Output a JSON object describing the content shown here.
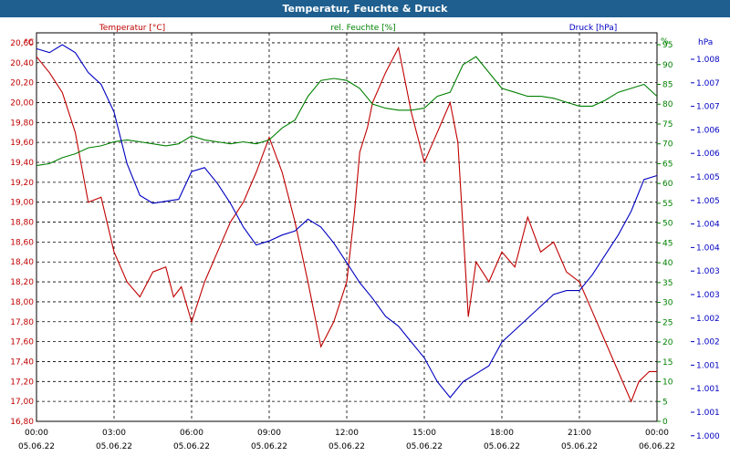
{
  "chart_data": {
    "type": "line",
    "title": "Temperatur, Feuchte & Druck",
    "x_tick_labels": [
      {
        "time": "00:00",
        "date": "05.06.22"
      },
      {
        "time": "03:00",
        "date": "05.06.22"
      },
      {
        "time": "06:00",
        "date": "05.06.22"
      },
      {
        "time": "09:00",
        "date": "05.06.22"
      },
      {
        "time": "12:00",
        "date": "05.06.22"
      },
      {
        "time": "15:00",
        "date": "05.06.22"
      },
      {
        "time": "18:00",
        "date": "05.06.22"
      },
      {
        "time": "21:00",
        "date": "05.06.22"
      },
      {
        "time": "00:00",
        "date": "06.06.22"
      }
    ],
    "x_range_hours": [
      0,
      24
    ],
    "axes": {
      "temperature": {
        "label": "Temperatur [°C]",
        "unit": "°C",
        "color": "#c00000",
        "range": [
          16.8,
          20.7
        ],
        "ticks": [
          "16,80",
          "17,00",
          "17,20",
          "17,40",
          "17,60",
          "17,80",
          "18,00",
          "18,20",
          "18,40",
          "18,60",
          "18,80",
          "19,00",
          "19,20",
          "19,40",
          "19,60",
          "19,80",
          "20,00",
          "20,20",
          "20,40",
          "20,60"
        ]
      },
      "humidity": {
        "label": "rel. Feuchte [%]",
        "unit": "%",
        "color": "#008000",
        "range": [
          0,
          98
        ],
        "ticks": [
          "0",
          "5",
          "10",
          "15",
          "20",
          "25",
          "30",
          "35",
          "40",
          "45",
          "50",
          "55",
          "60",
          "65",
          "70",
          "75",
          "80",
          "85",
          "90",
          "95"
        ]
      },
      "pressure": {
        "label": "Druck [hPa]",
        "unit": "hPa",
        "color": "#0000c0",
        "ticks": [
          "1.000",
          "1.001",
          "1.001",
          "1.001",
          "1.002",
          "1.002",
          "1.003",
          "1.003",
          "1.004",
          "1.004",
          "1.005",
          "1.005",
          "1.006",
          "1.006",
          "1.007",
          "1.007",
          "1.008"
        ]
      }
    },
    "series": [
      {
        "name": "Temperatur [°C]",
        "axis": "temperature",
        "color": "#c00000",
        "points": [
          [
            0,
            20.46
          ],
          [
            0.5,
            20.3
          ],
          [
            1,
            20.1
          ],
          [
            1.5,
            19.7
          ],
          [
            2,
            19.0
          ],
          [
            2.5,
            19.05
          ],
          [
            3,
            18.5
          ],
          [
            3.5,
            18.2
          ],
          [
            4,
            18.05
          ],
          [
            4.5,
            18.3
          ],
          [
            5,
            18.35
          ],
          [
            5.3,
            18.05
          ],
          [
            5.6,
            18.15
          ],
          [
            6,
            17.8
          ],
          [
            6.5,
            18.2
          ],
          [
            7,
            18.5
          ],
          [
            7.5,
            18.8
          ],
          [
            8,
            19.0
          ],
          [
            8.5,
            19.3
          ],
          [
            9,
            19.65
          ],
          [
            9.5,
            19.3
          ],
          [
            10,
            18.8
          ],
          [
            10.5,
            18.2
          ],
          [
            11,
            17.55
          ],
          [
            11.5,
            17.8
          ],
          [
            12,
            18.2
          ],
          [
            12.3,
            18.9
          ],
          [
            12.5,
            19.5
          ],
          [
            12.8,
            19.75
          ],
          [
            13,
            20.0
          ],
          [
            13.5,
            20.3
          ],
          [
            14,
            20.55
          ],
          [
            14.5,
            19.9
          ],
          [
            15,
            19.4
          ],
          [
            15.5,
            19.7
          ],
          [
            16,
            20.0
          ],
          [
            16.3,
            19.6
          ],
          [
            16.7,
            17.85
          ],
          [
            17,
            18.4
          ],
          [
            17.5,
            18.2
          ],
          [
            18,
            18.5
          ],
          [
            18.5,
            18.35
          ],
          [
            19,
            18.85
          ],
          [
            19.5,
            18.5
          ],
          [
            20,
            18.6
          ],
          [
            20.5,
            18.3
          ],
          [
            21,
            18.2
          ],
          [
            21.5,
            17.9
          ],
          [
            22,
            17.6
          ],
          [
            22.5,
            17.3
          ],
          [
            23,
            17.0
          ],
          [
            23.3,
            17.2
          ],
          [
            23.7,
            17.3
          ],
          [
            24,
            17.3
          ]
        ]
      },
      {
        "name": "rel. Feuchte [%]",
        "axis": "humidity",
        "color": "#008000",
        "points": [
          [
            0,
            64.5
          ],
          [
            0.5,
            65
          ],
          [
            1,
            66.5
          ],
          [
            1.5,
            67.5
          ],
          [
            2,
            69
          ],
          [
            2.5,
            69.5
          ],
          [
            3,
            70.5
          ],
          [
            3.5,
            71
          ],
          [
            4,
            70.5
          ],
          [
            4.5,
            70
          ],
          [
            5,
            69.5
          ],
          [
            5.5,
            70
          ],
          [
            6,
            72
          ],
          [
            6.5,
            71
          ],
          [
            7,
            70.5
          ],
          [
            7.5,
            70
          ],
          [
            8,
            70.5
          ],
          [
            8.5,
            70
          ],
          [
            9,
            71
          ],
          [
            9.5,
            74
          ],
          [
            10,
            76
          ],
          [
            10.5,
            82
          ],
          [
            11,
            86
          ],
          [
            11.5,
            86.5
          ],
          [
            12,
            86
          ],
          [
            12.5,
            84
          ],
          [
            13,
            80
          ],
          [
            13.5,
            79
          ],
          [
            14,
            78.5
          ],
          [
            14.5,
            78.5
          ],
          [
            15,
            79
          ],
          [
            15.5,
            82
          ],
          [
            16,
            83
          ],
          [
            16.5,
            90
          ],
          [
            17,
            92
          ],
          [
            17.5,
            88
          ],
          [
            18,
            84
          ],
          [
            18.5,
            83
          ],
          [
            19,
            82
          ],
          [
            19.5,
            82
          ],
          [
            20,
            81.5
          ],
          [
            20.5,
            80.5
          ],
          [
            21,
            79.5
          ],
          [
            21.5,
            79.5
          ],
          [
            22,
            81
          ],
          [
            22.5,
            83
          ],
          [
            23,
            84
          ],
          [
            23.5,
            85
          ],
          [
            24,
            82
          ]
        ]
      },
      {
        "name": "Druck [hPa]",
        "axis": "pressure",
        "color": "#0000c0",
        "points": [
          [
            0,
            94
          ],
          [
            0.5,
            93
          ],
          [
            1,
            95
          ],
          [
            1.5,
            93
          ],
          [
            2,
            88
          ],
          [
            2.5,
            85
          ],
          [
            3,
            78
          ],
          [
            3.5,
            65
          ],
          [
            4,
            57
          ],
          [
            4.5,
            55
          ],
          [
            5,
            55.5
          ],
          [
            5.5,
            56
          ],
          [
            6,
            63
          ],
          [
            6.5,
            64
          ],
          [
            7,
            60
          ],
          [
            7.5,
            55
          ],
          [
            8,
            49
          ],
          [
            8.5,
            44.5
          ],
          [
            9,
            45.5
          ],
          [
            9.5,
            47
          ],
          [
            10,
            48
          ],
          [
            10.5,
            51
          ],
          [
            11,
            49
          ],
          [
            11.5,
            45
          ],
          [
            12,
            40
          ],
          [
            12.5,
            35
          ],
          [
            13,
            31
          ],
          [
            13.5,
            26.5
          ],
          [
            14,
            24
          ],
          [
            14.5,
            20
          ],
          [
            15,
            16
          ],
          [
            15.5,
            10
          ],
          [
            16,
            6
          ],
          [
            16.5,
            10
          ],
          [
            17,
            12
          ],
          [
            17.5,
            14
          ],
          [
            18,
            20
          ],
          [
            18.5,
            23
          ],
          [
            19,
            26
          ],
          [
            19.5,
            29
          ],
          [
            20,
            32
          ],
          [
            20.5,
            33
          ],
          [
            21,
            33
          ],
          [
            21.5,
            37
          ],
          [
            22,
            42
          ],
          [
            22.5,
            47
          ],
          [
            23,
            53
          ],
          [
            23.5,
            61
          ],
          [
            24,
            62
          ]
        ]
      }
    ]
  }
}
